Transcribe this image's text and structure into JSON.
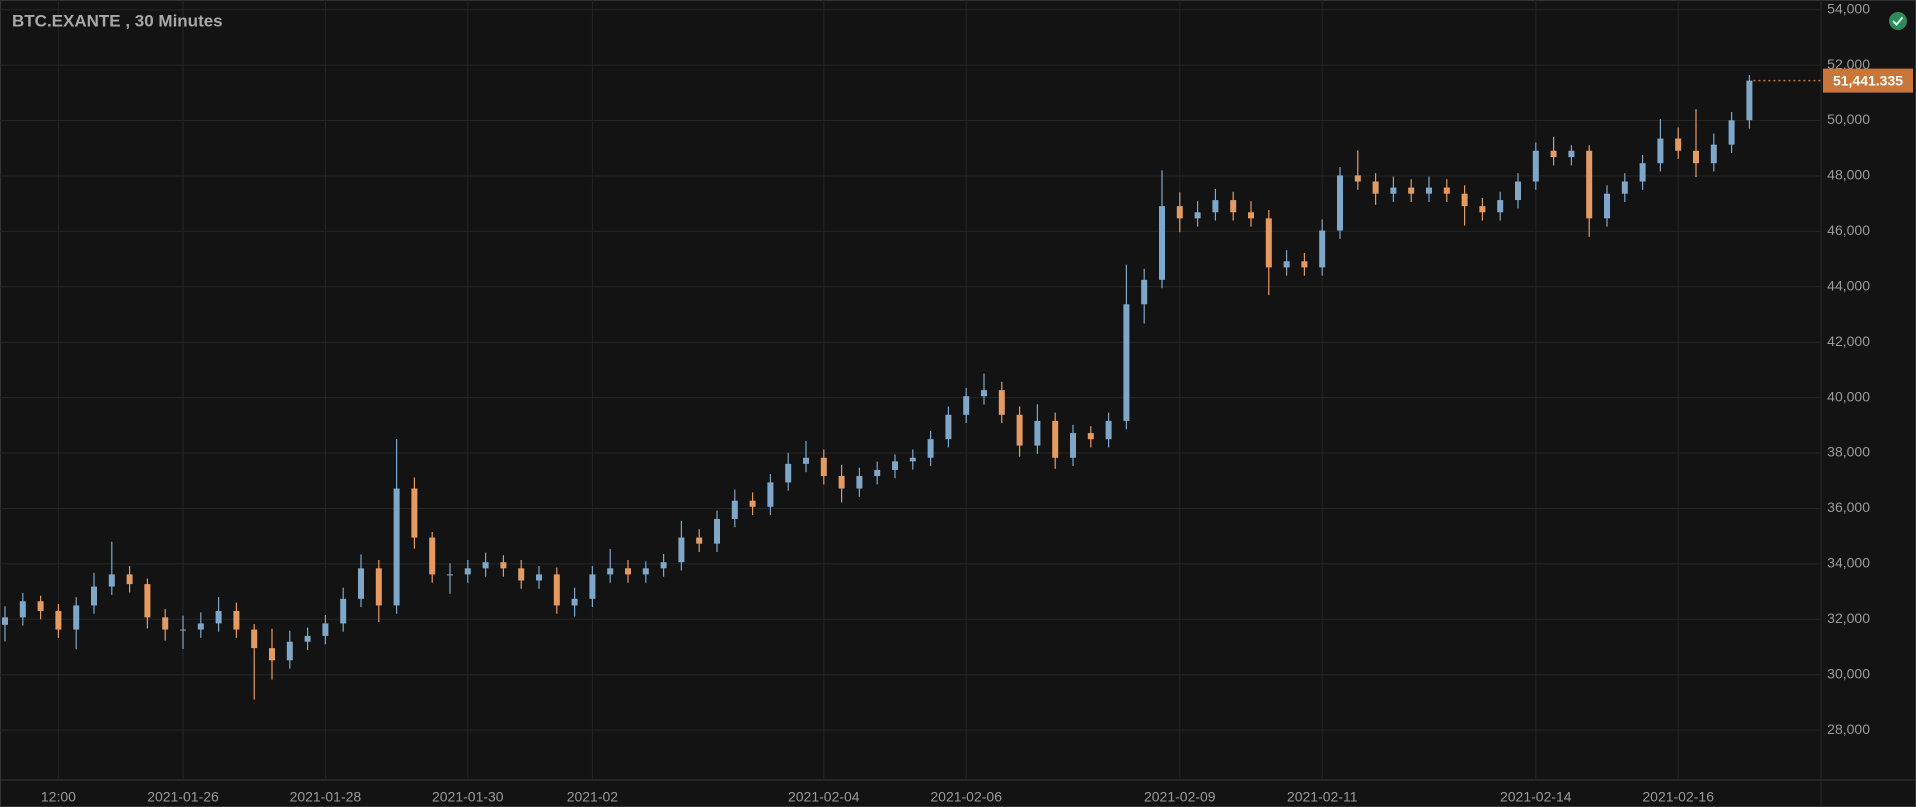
{
  "chart_data": {
    "type": "candlestick",
    "title": "BTC.EXANTE , 30 Minutes",
    "categories": [
      null,
      null,
      null,
      "12:00",
      null,
      null,
      null,
      null,
      null,
      null,
      "2021-01-26",
      null,
      null,
      null,
      null,
      null,
      null,
      null,
      "2021-01-28",
      null,
      null,
      null,
      null,
      null,
      null,
      null,
      "2021-01-30",
      null,
      null,
      null,
      null,
      null,
      null,
      "2021-02",
      null,
      null,
      null,
      null,
      null,
      null,
      null,
      null,
      null,
      null,
      null,
      null,
      "2021-02-04",
      null,
      null,
      null,
      null,
      null,
      null,
      null,
      "2021-02-06",
      null,
      null,
      null,
      null,
      null,
      null,
      null,
      null,
      null,
      null,
      null,
      "2021-02-09",
      null,
      null,
      null,
      null,
      null,
      null,
      null,
      "2021-02-11",
      null,
      null,
      null,
      null,
      null,
      null,
      null,
      null,
      null,
      null,
      null,
      "2021-02-14",
      null,
      null,
      null,
      null,
      null,
      null,
      null,
      "2021-02-16",
      null,
      null,
      null,
      null
    ],
    "open": [
      31800,
      32070,
      32650,
      32300,
      31630,
      32500,
      33180,
      33620,
      33270,
      32070,
      31630,
      31630,
      31850,
      32300,
      31630,
      30960,
      30520,
      31190,
      31400,
      31850,
      32740,
      33840,
      32500,
      36720,
      34950,
      33620,
      33620,
      33840,
      34060,
      33840,
      33400,
      33620,
      32500,
      32740,
      33620,
      33840,
      33620,
      33840,
      34060,
      34950,
      34730,
      35620,
      36280,
      36060,
      36940,
      37610,
      37830,
      37170,
      36720,
      37170,
      37390,
      37700,
      37830,
      38500,
      39380,
      40050,
      40270,
      39380,
      38270,
      39160,
      37830,
      38720,
      38500,
      39160,
      43370,
      44250,
      46910,
      46470,
      46690,
      47130,
      46690,
      46470,
      44700,
      44920,
      44700,
      46030,
      48020,
      47800,
      47360,
      47580,
      47360,
      47580,
      47360,
      46910,
      46690,
      47130,
      47800,
      48910,
      48680,
      48910,
      46470,
      47360,
      47800,
      48460,
      49350,
      48910,
      48460,
      49130,
      50010
    ],
    "high": [
      32470,
      32950,
      32850,
      32550,
      32800,
      33680,
      34800,
      33920,
      33470,
      32370,
      32130,
      32250,
      32800,
      32600,
      31830,
      31660,
      31590,
      31700,
      32150,
      33140,
      34340,
      34140,
      38500,
      37120,
      35150,
      34020,
      34140,
      34410,
      34310,
      34140,
      33920,
      33870,
      33140,
      33920,
      34540,
      34140,
      34090,
      34360,
      35550,
      35250,
      35920,
      36680,
      36580,
      37240,
      38010,
      38430,
      38130,
      37570,
      37470,
      37690,
      37950,
      38130,
      38800,
      39680,
      40350,
      40870,
      40570,
      39680,
      39760,
      39460,
      39020,
      38970,
      39460,
      44800,
      44650,
      48200,
      47410,
      47090,
      47530,
      47430,
      47090,
      46770,
      45320,
      45220,
      46430,
      48320,
      48920,
      48100,
      47980,
      47880,
      47980,
      47880,
      47660,
      47210,
      47430,
      48100,
      49210,
      49410,
      49110,
      49110,
      47660,
      48100,
      48760,
      50050,
      49750,
      50410,
      49530,
      50310,
      51640
    ],
    "low": [
      31200,
      31770,
      32000,
      31330,
      30930,
      32200,
      32880,
      32970,
      31670,
      31230,
      30930,
      31330,
      31550,
      31330,
      29100,
      29820,
      30220,
      30890,
      31100,
      31550,
      32440,
      31900,
      32200,
      34550,
      33320,
      32920,
      33320,
      33540,
      33540,
      33100,
      33100,
      32200,
      32100,
      32440,
      33320,
      33320,
      33320,
      33540,
      33760,
      34430,
      34430,
      35320,
      35760,
      35760,
      36640,
      37310,
      36870,
      36220,
      36420,
      36870,
      37090,
      37400,
      37530,
      38200,
      39080,
      39750,
      39080,
      37870,
      37970,
      37430,
      37530,
      38200,
      38200,
      38860,
      42670,
      43950,
      45970,
      46170,
      46390,
      46390,
      46170,
      43700,
      44400,
      44400,
      44400,
      45730,
      47500,
      46960,
      47060,
      47060,
      47060,
      47060,
      46210,
      46390,
      46390,
      46830,
      47500,
      48380,
      48380,
      45800,
      46170,
      47060,
      47500,
      48160,
      48610,
      47960,
      48160,
      48830,
      49710
    ],
    "close": [
      32070,
      32650,
      32300,
      31630,
      32500,
      33180,
      33620,
      33270,
      32070,
      31630,
      31630,
      31850,
      32300,
      31630,
      30960,
      30520,
      31190,
      31400,
      31850,
      32740,
      33840,
      32500,
      36720,
      34950,
      33620,
      33620,
      33840,
      34060,
      33840,
      33400,
      33620,
      32500,
      32740,
      33620,
      33840,
      33620,
      33840,
      34060,
      34950,
      34730,
      35620,
      36280,
      36060,
      36940,
      37610,
      37830,
      37170,
      36720,
      37170,
      37390,
      37700,
      37830,
      38500,
      39380,
      40050,
      40270,
      39380,
      38270,
      39160,
      37830,
      38720,
      38500,
      39160,
      43370,
      44250,
      46910,
      46470,
      46690,
      47130,
      46690,
      46470,
      44700,
      44920,
      44700,
      46030,
      48020,
      47800,
      47360,
      47580,
      47360,
      47580,
      47360,
      46910,
      46690,
      47130,
      47800,
      48910,
      48680,
      48910,
      46470,
      47360,
      47800,
      48460,
      49350,
      48910,
      48460,
      49130,
      50010,
      51440
    ],
    "up_color": "#7ea7c9",
    "down_color": "#e49b63",
    "ylim": [
      26200,
      54350
    ],
    "yticks": [
      {
        "value": 28000,
        "label": "28,000"
      },
      {
        "value": 30000,
        "label": "30,000"
      },
      {
        "value": 32000,
        "label": "32,000"
      },
      {
        "value": 34000,
        "label": "34,000"
      },
      {
        "value": 36000,
        "label": "36,000"
      },
      {
        "value": 38000,
        "label": "38,000"
      },
      {
        "value": 40000,
        "label": "40,000"
      },
      {
        "value": 42000,
        "label": "42,000"
      },
      {
        "value": 44000,
        "label": "44,000"
      },
      {
        "value": 46000,
        "label": "46,000"
      },
      {
        "value": 48000,
        "label": "48,000"
      },
      {
        "value": 50000,
        "label": "50,000"
      },
      {
        "value": 52000,
        "label": "52,000"
      },
      {
        "value": 54000,
        "label": "54,000"
      }
    ],
    "grid": true,
    "last_price": {
      "value": 51441.335,
      "label": "51,441.335",
      "color": "#c8763a"
    }
  }
}
